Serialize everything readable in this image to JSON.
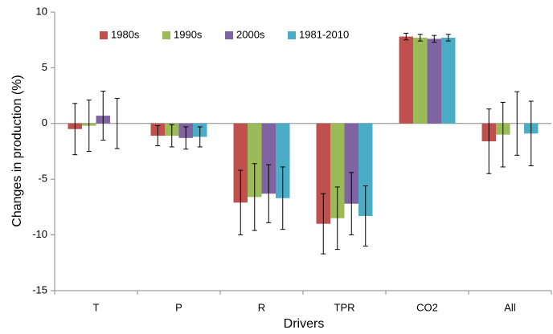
{
  "chart_data": {
    "type": "bar",
    "y_label": "Changes in production (%)",
    "x_label": "Drivers",
    "categories": [
      "T",
      "P",
      "R",
      "TPR",
      "CO2",
      "All"
    ],
    "series": [
      {
        "name": "1980s",
        "color": "#c0504d",
        "values": [
          -0.5,
          -1.1,
          -7.1,
          -9.0,
          7.8,
          -1.6
        ],
        "errors": [
          2.3,
          0.9,
          2.9,
          2.7,
          0.3,
          2.9
        ]
      },
      {
        "name": "1990s",
        "color": "#9bbb59",
        "values": [
          -0.2,
          -1.1,
          -6.6,
          -8.5,
          7.7,
          -1.0
        ],
        "errors": [
          2.3,
          1.0,
          3.0,
          2.8,
          0.3,
          2.9
        ]
      },
      {
        "name": "2000s",
        "color": "#8064a2",
        "values": [
          0.7,
          -1.3,
          -6.3,
          -7.2,
          7.6,
          0
        ],
        "errors": [
          2.2,
          1.0,
          2.6,
          2.8,
          0.3,
          2.85
        ]
      },
      {
        "name": "1981-2010",
        "color": "#4bacc6",
        "values": [
          0,
          -1.2,
          -6.7,
          -8.3,
          7.7,
          -0.9
        ],
        "errors": [
          2.25,
          0.9,
          2.8,
          2.7,
          0.3,
          2.9
        ]
      }
    ],
    "ylim": [
      -15,
      10
    ],
    "yticks": [
      -15,
      -10,
      -5,
      0,
      5,
      10
    ],
    "legend": "top-left"
  }
}
